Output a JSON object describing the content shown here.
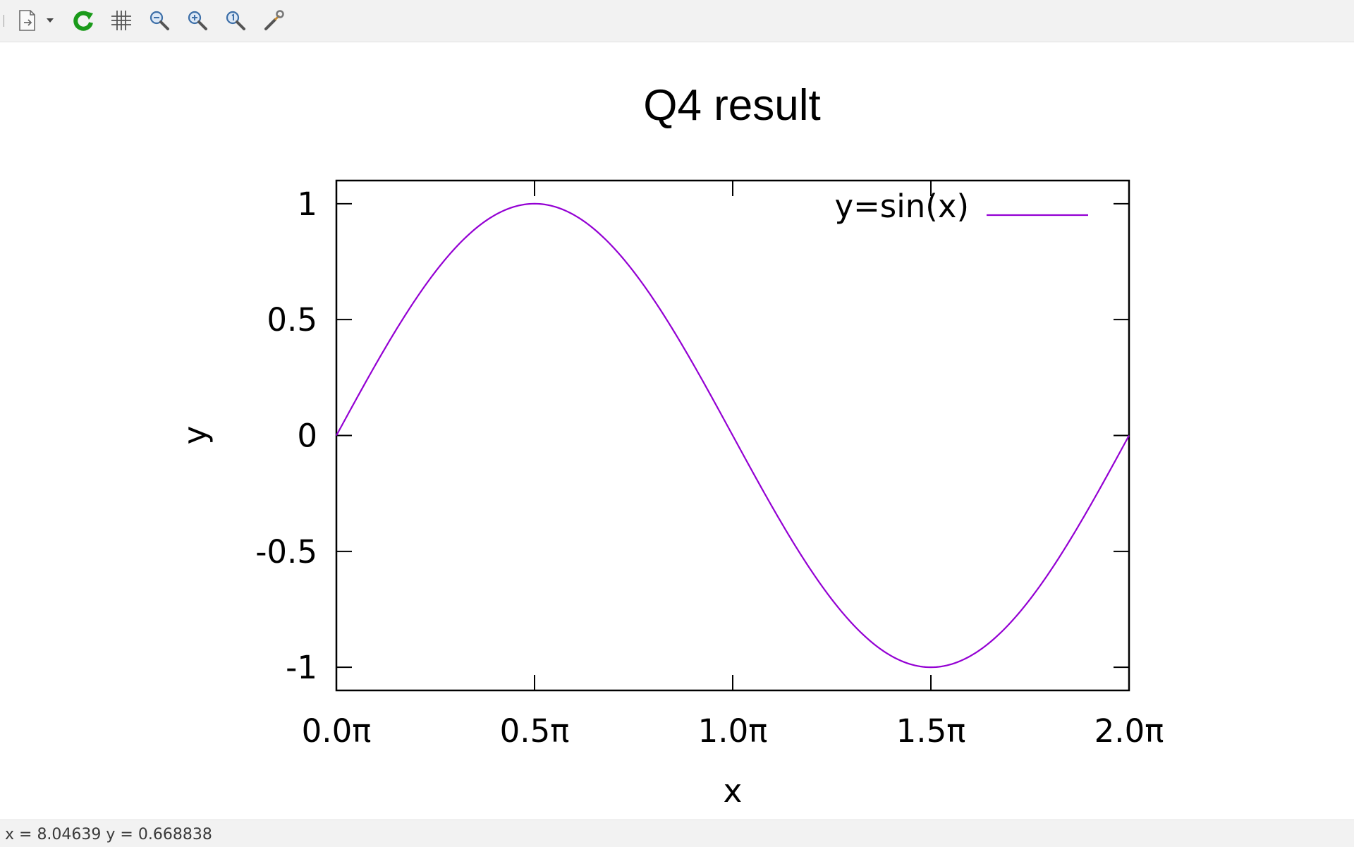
{
  "window": {
    "toolbar": {
      "buttons": [
        {
          "icon": "export-icon",
          "tooltip": "Export"
        },
        {
          "icon": "dropdown-arrow-icon",
          "tooltip": ""
        },
        {
          "icon": "replot-icon",
          "tooltip": "Replot"
        },
        {
          "icon": "grid-icon",
          "tooltip": "Show grid"
        },
        {
          "icon": "zoom-previous-icon",
          "tooltip": "Previous zoom"
        },
        {
          "icon": "zoom-next-icon",
          "tooltip": "Next zoom"
        },
        {
          "icon": "zoom-reset-icon",
          "tooltip": "Unzoom"
        },
        {
          "icon": "settings-wrench-icon",
          "tooltip": "Settings"
        }
      ]
    },
    "status": {
      "text": "x = 8.04639 y = 0.668838"
    }
  },
  "chart_data": {
    "type": "line",
    "title": "Q4 result",
    "xlabel": "x",
    "ylabel": "y",
    "xlim": [
      0,
      6.283185307
    ],
    "ylim": [
      -1.1,
      1.1
    ],
    "x_ticks": [
      {
        "value": 0,
        "label": "0.0π"
      },
      {
        "value": 1.570796327,
        "label": "0.5π"
      },
      {
        "value": 3.141592654,
        "label": "1.0π"
      },
      {
        "value": 4.71238898,
        "label": "1.5π"
      },
      {
        "value": 6.283185307,
        "label": "2.0π"
      }
    ],
    "y_ticks": [
      {
        "value": 1,
        "label": "1"
      },
      {
        "value": 0.5,
        "label": "0.5"
      },
      {
        "value": 0,
        "label": "0"
      },
      {
        "value": -0.5,
        "label": "-0.5"
      },
      {
        "value": -1,
        "label": "-1"
      }
    ],
    "grid": false,
    "legend_position": "top-right",
    "series": [
      {
        "name": "y=sin(x)",
        "color": "#9400d3",
        "function": "sin(x)",
        "x": [
          0,
          0.2618,
          0.5236,
          0.7854,
          1.0472,
          1.309,
          1.5708,
          1.8326,
          2.0944,
          2.3562,
          2.618,
          2.8798,
          3.1416,
          3.4034,
          3.6652,
          3.927,
          4.1888,
          4.4506,
          4.7124,
          4.9742,
          5.236,
          5.4978,
          5.7596,
          6.0214,
          6.2832
        ],
        "y": [
          0,
          0.2588,
          0.5,
          0.7071,
          0.866,
          0.9659,
          1,
          0.9659,
          0.866,
          0.7071,
          0.5,
          0.2588,
          0,
          -0.2588,
          -0.5,
          -0.7071,
          -0.866,
          -0.9659,
          -1,
          -0.9659,
          -0.866,
          -0.7071,
          -0.5,
          -0.2588,
          0
        ]
      }
    ]
  }
}
